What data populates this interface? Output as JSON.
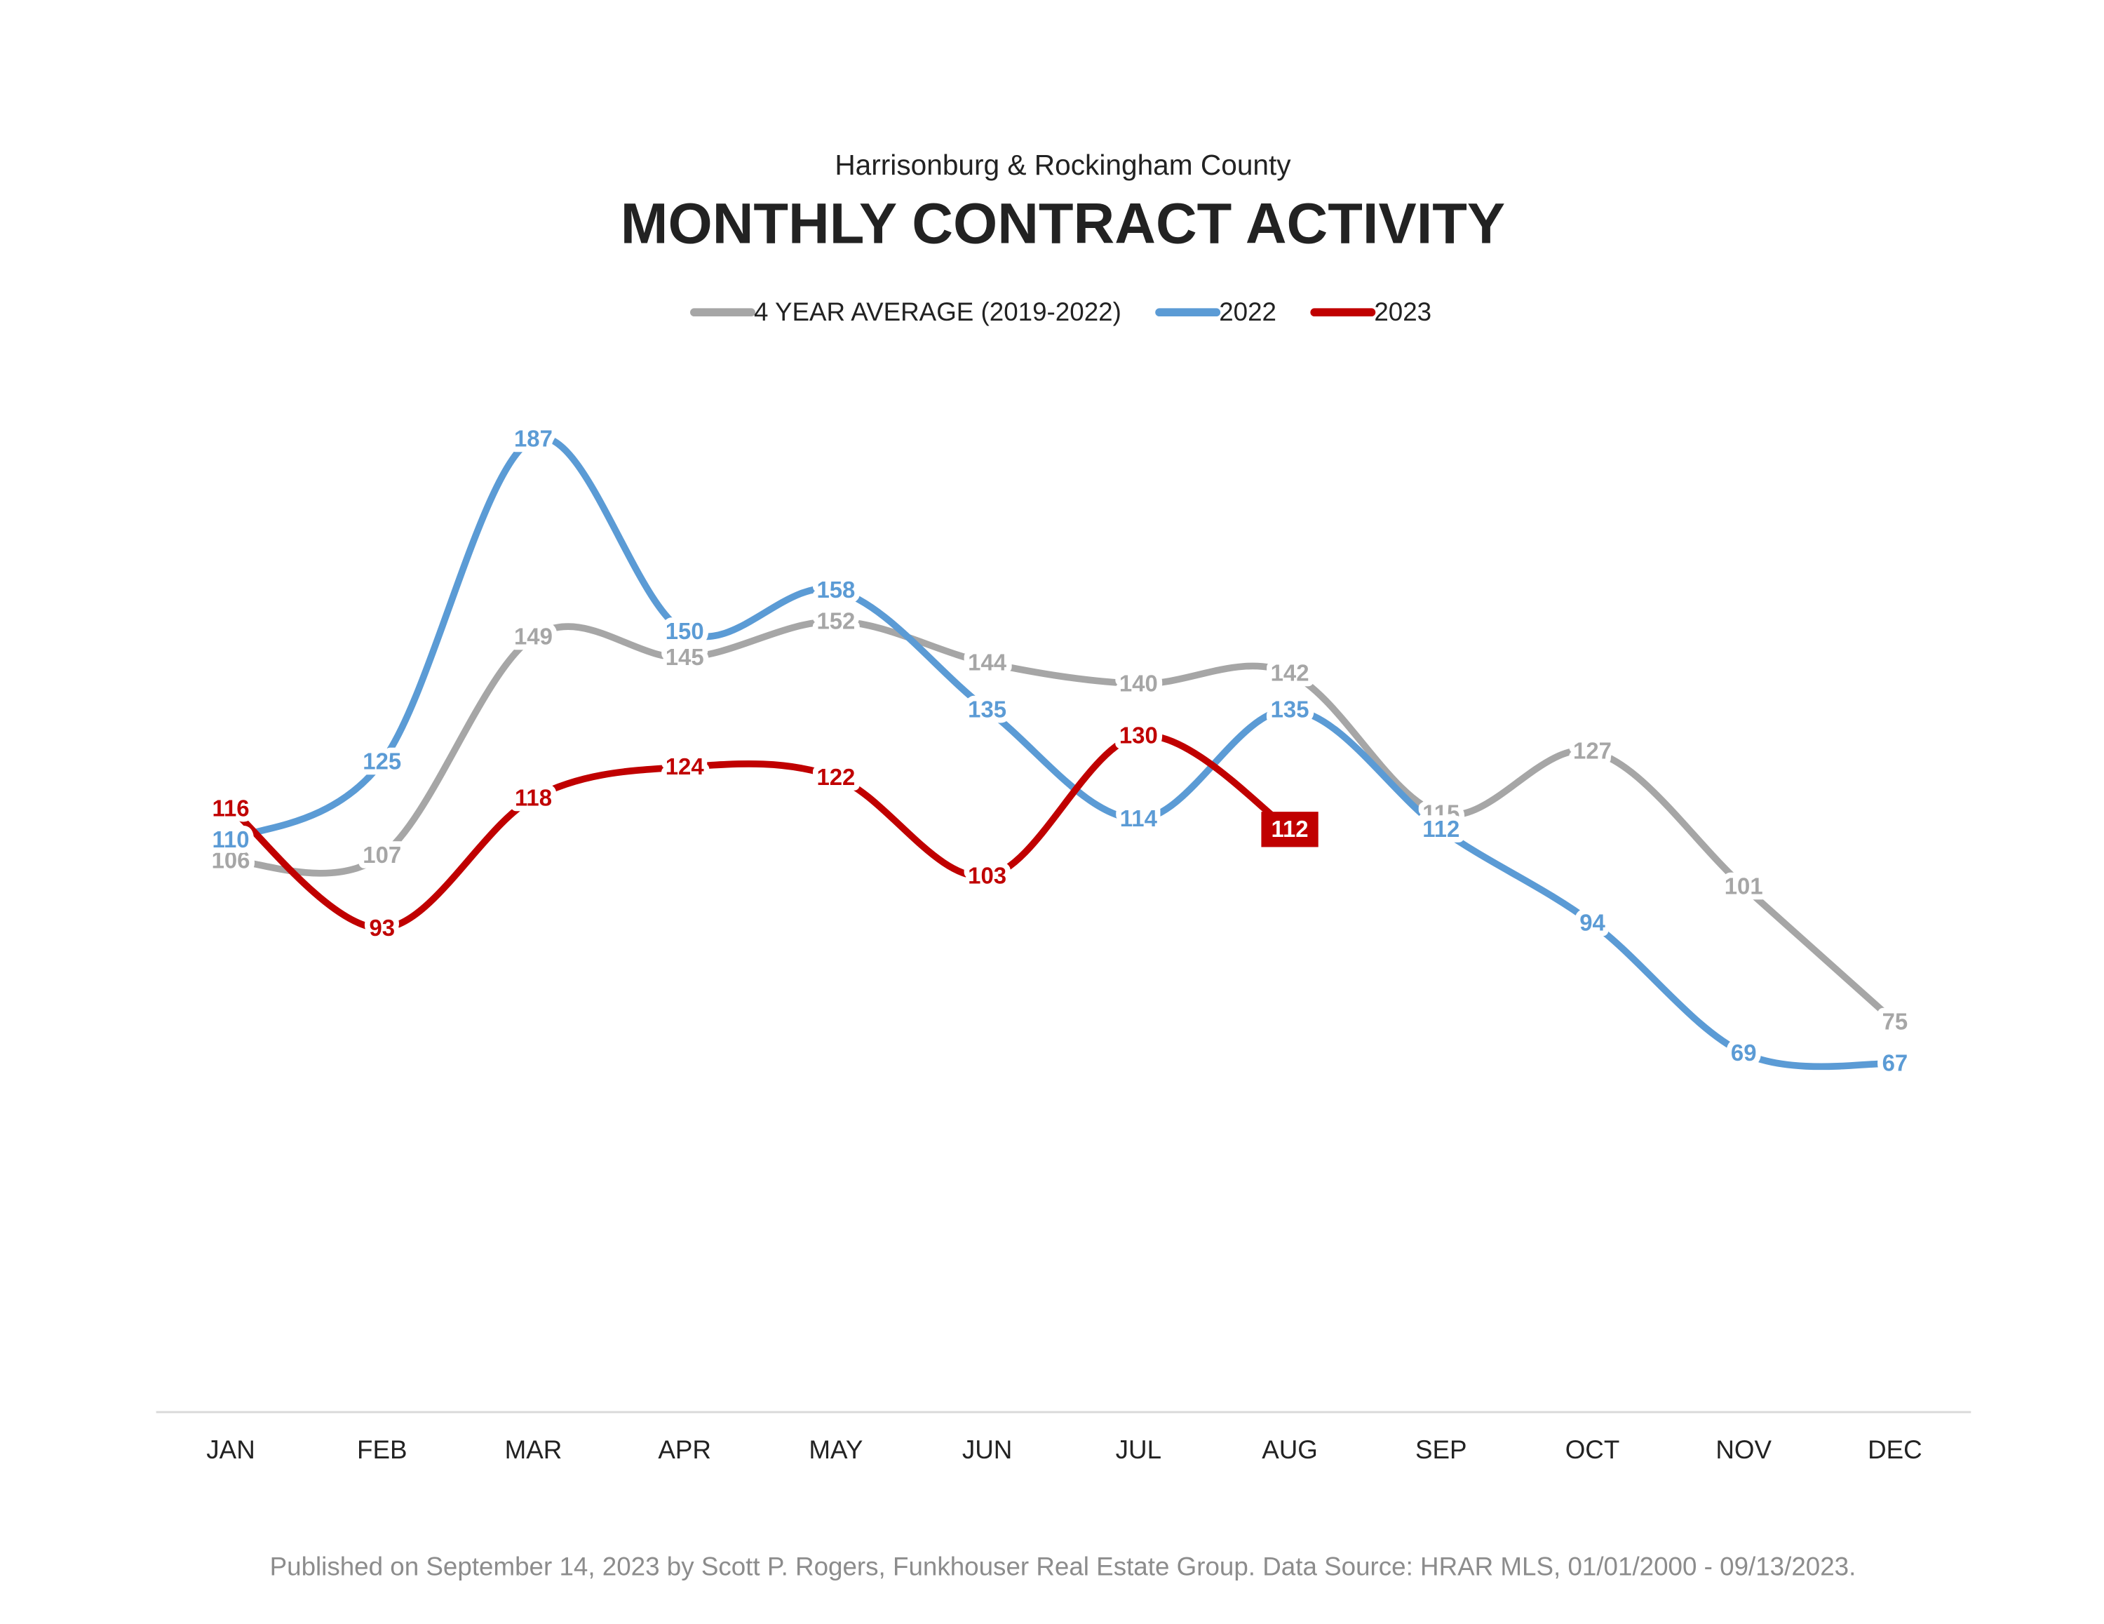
{
  "chart_data": {
    "type": "line",
    "subtitle": "Harrisonburg & Rockingham County",
    "title": "MONTHLY CONTRACT ACTIVITY",
    "footnote": "Published on September 14, 2023 by Scott P. Rogers, Funkhouser Real Estate Group. Data Source: HRAR MLS, 01/01/2000 - 09/13/2023.",
    "categories": [
      "JAN",
      "FEB",
      "MAR",
      "APR",
      "MAY",
      "JUN",
      "JUL",
      "AUG",
      "SEP",
      "OCT",
      "NOV",
      "DEC"
    ],
    "ylim": [
      0,
      250
    ],
    "legend": "top",
    "series": [
      {
        "name": "4 YEAR AVERAGE (2019-2022)",
        "color": "#a6a6a6",
        "values": [
          106,
          107,
          149,
          145,
          152,
          144,
          140,
          142,
          115,
          127,
          101,
          75
        ]
      },
      {
        "name": "2022",
        "color": "#5b9bd5",
        "values": [
          110,
          125,
          187,
          150,
          158,
          135,
          114,
          135,
          112,
          94,
          69,
          67
        ]
      },
      {
        "name": "2023",
        "color": "#c00000",
        "values": [
          116,
          93,
          118,
          124,
          122,
          103,
          130,
          112,
          null,
          null,
          null,
          null
        ]
      }
    ]
  }
}
